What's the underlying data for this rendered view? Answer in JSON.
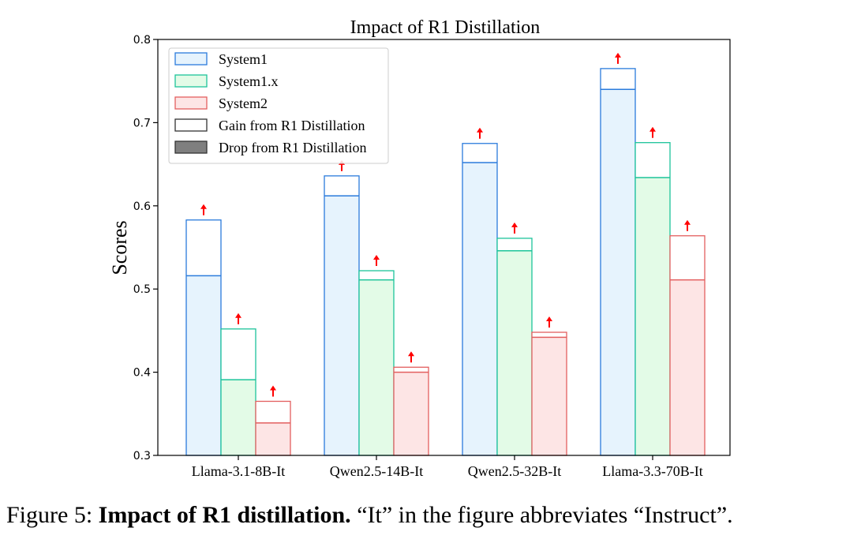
{
  "chart_data": {
    "type": "bar",
    "title": "Impact of R1 Distillation",
    "xlabel": "",
    "ylabel": "Scores",
    "ylim": [
      0.3,
      0.8
    ],
    "yticks": [
      "0.3",
      "0.4",
      "0.5",
      "0.6",
      "0.7",
      "0.8"
    ],
    "categories": [
      "Llama-3.1-8B-It",
      "Qwen2.5-14B-It",
      "Qwen2.5-32B-It",
      "Llama-3.3-70B-It"
    ],
    "series": [
      {
        "name": "System1",
        "fill": "#e6f3fd",
        "edge": "#2b7bdc",
        "strong": "#1a73f0",
        "base": [
          0.516,
          0.612,
          0.652,
          0.74
        ],
        "distilled": [
          0.583,
          0.636,
          0.675,
          0.765
        ]
      },
      {
        "name": "System1.x",
        "fill": "#e3fbe7",
        "edge": "#1cc49a",
        "strong": "#00c58f",
        "base": [
          0.391,
          0.511,
          0.546,
          0.634
        ],
        "distilled": [
          0.452,
          0.522,
          0.561,
          0.676
        ]
      },
      {
        "name": "System2",
        "fill": "#fde5e5",
        "edge": "#e35f5f",
        "strong": "#ff4d4d",
        "base": [
          0.339,
          0.4,
          0.442,
          0.511
        ],
        "distilled": [
          0.365,
          0.406,
          0.448,
          0.564
        ]
      }
    ],
    "legend": {
      "placement": "top-left",
      "extra_entries": [
        "Gain from R1 Distillation",
        "Drop from R1 Distillation"
      ]
    },
    "arrow_up_color": "#ff0000",
    "arrow_down_color": "#0a8a0a"
  },
  "caption": {
    "prefix": "Figure 5: ",
    "bold": "Impact of R1 distillation.",
    "rest": " “It” in the figure abbreviates “Instruct”."
  }
}
